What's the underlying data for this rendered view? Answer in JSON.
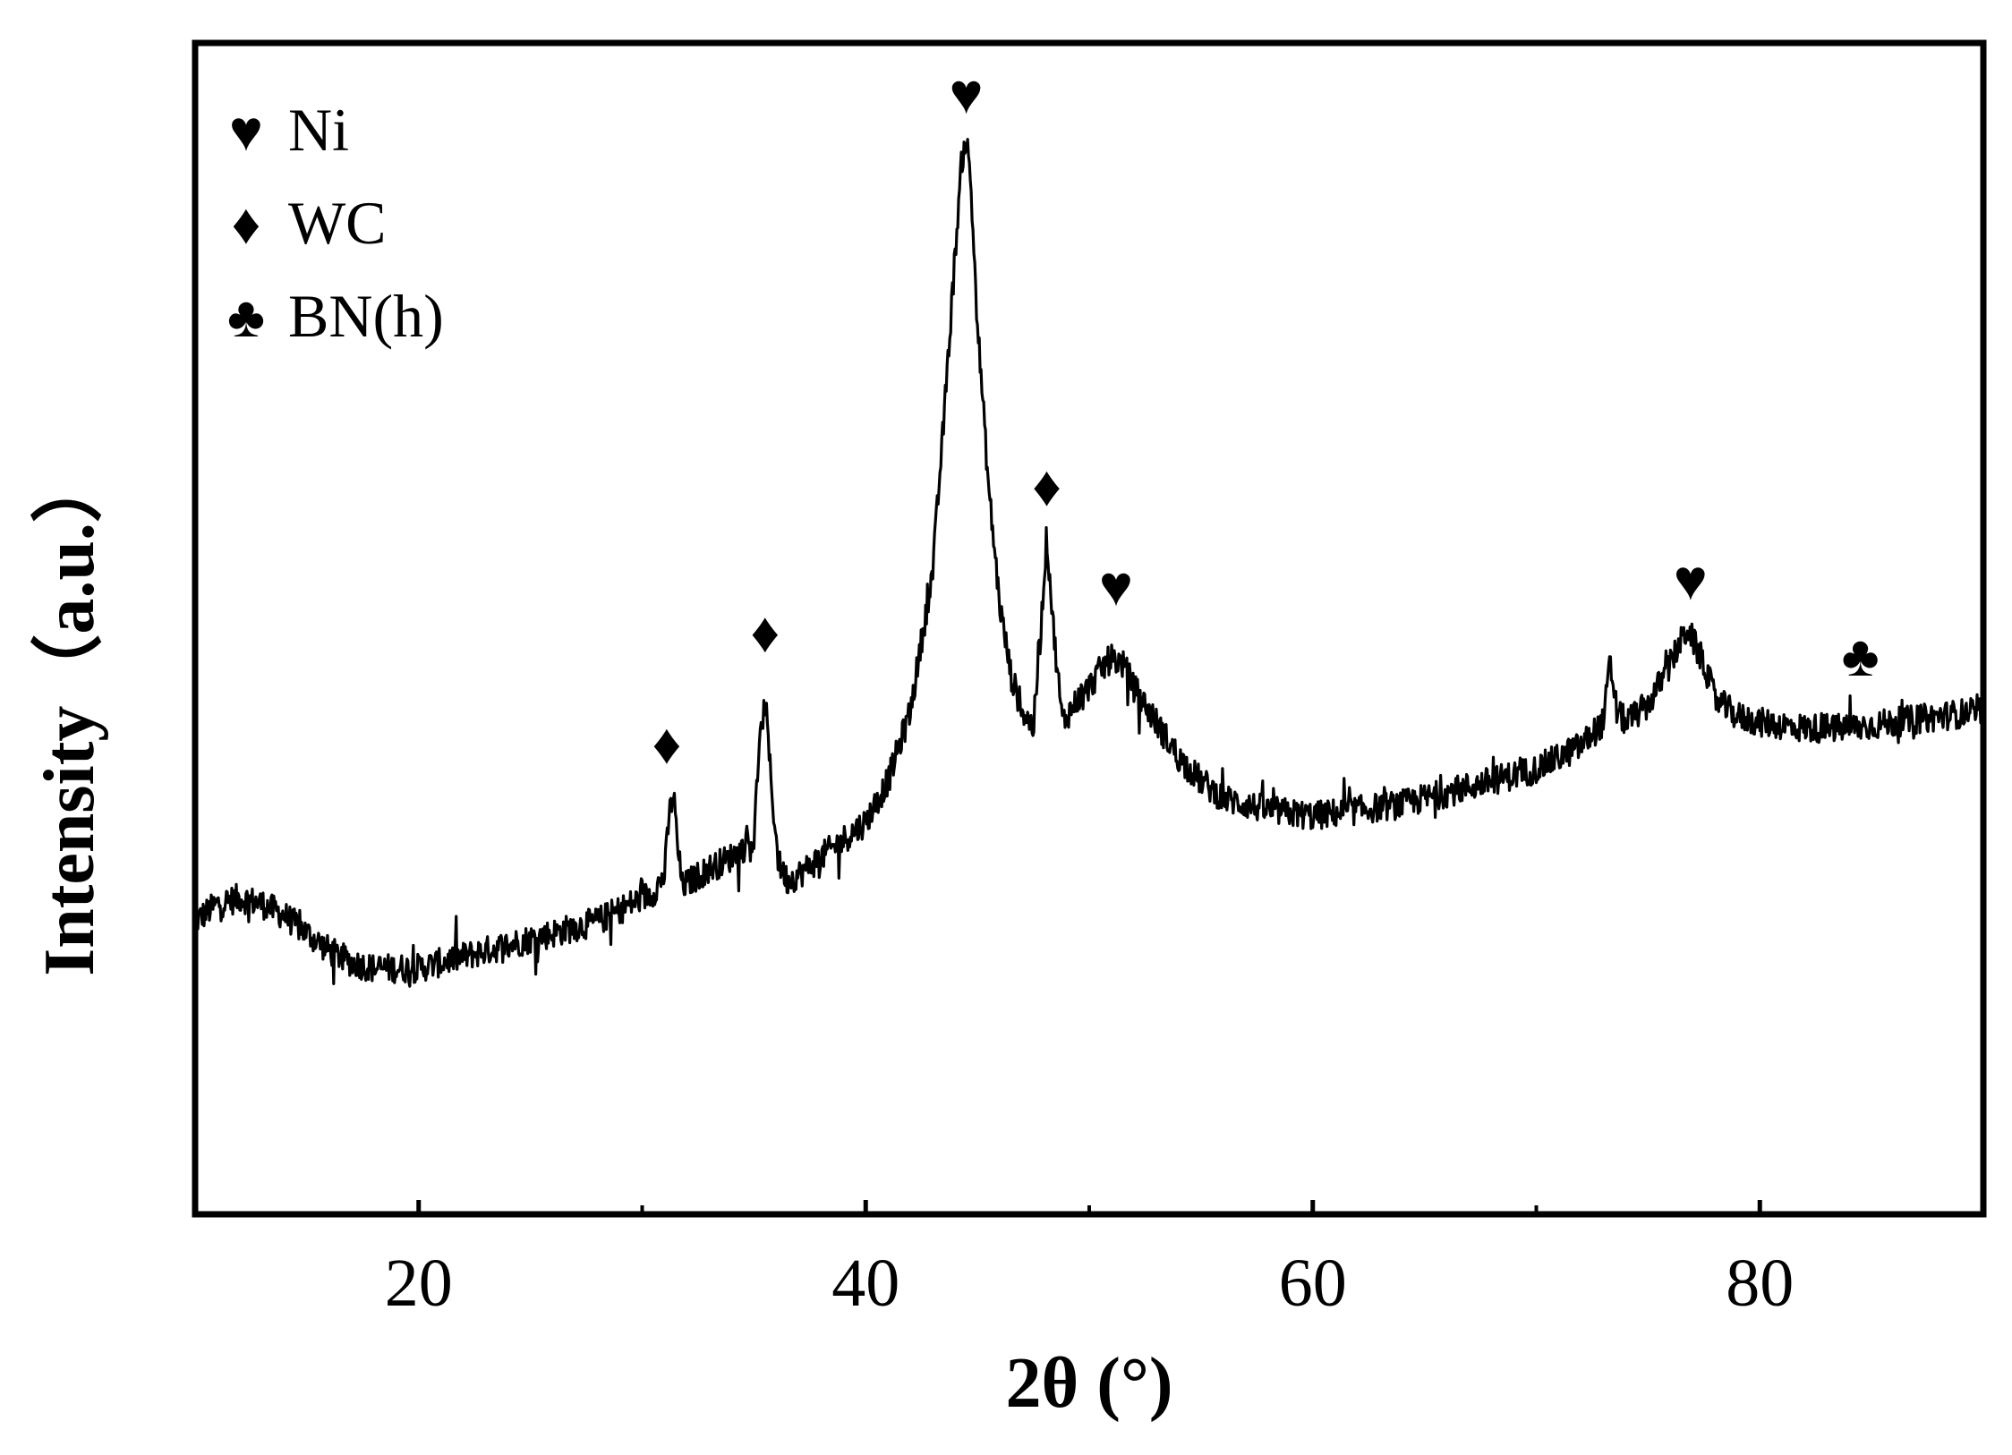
{
  "chart_data": {
    "type": "line",
    "xlabel": "2θ (°)",
    "ylabel": "Intensity（a.u.）",
    "xlim": [
      10,
      90
    ],
    "ylim": [
      0,
      100
    ],
    "x_ticks": [
      20,
      40,
      60,
      80
    ],
    "x_minor_ticks": [
      30,
      50,
      70
    ],
    "x_tick_labels": [
      "20",
      "40",
      "60",
      "80"
    ],
    "y_tick_labels_shown": false,
    "grid": false,
    "legend_position": "top-left",
    "legend": [
      {
        "symbol": "♥",
        "label": "Ni"
      },
      {
        "symbol": "♦",
        "label": "WC"
      },
      {
        "symbol": "♣",
        "label": "BN(h)"
      }
    ],
    "series": [
      {
        "color": "#000000",
        "noise_amplitude": 2.5,
        "x": [
          10,
          11,
          12,
          13,
          14,
          15,
          16,
          17,
          18,
          19,
          20,
          21,
          22,
          23,
          24,
          25,
          26,
          27,
          28,
          29,
          30,
          30.5,
          31,
          31.2,
          31.4,
          31.6,
          31.8,
          32.2,
          33,
          34,
          35,
          35.2,
          35.5,
          35.8,
          36.1,
          36.5,
          37,
          38,
          39,
          40,
          41,
          42,
          43,
          43.5,
          44,
          44.3,
          44.5,
          44.7,
          45,
          45.5,
          46,
          46.5,
          47,
          47.5,
          47.8,
          48.1,
          48.4,
          48.8,
          49.5,
          50,
          50.5,
          51,
          51.5,
          52,
          53,
          54,
          55,
          56,
          58,
          60,
          62,
          64,
          66,
          68,
          70,
          72,
          73,
          73.3,
          73.6,
          74,
          75,
          76,
          76.5,
          76.8,
          77,
          77.5,
          78,
          79,
          80,
          82,
          84,
          86,
          88,
          90
        ],
        "y": [
          25,
          26.5,
          27,
          26.5,
          25.5,
          24,
          22.5,
          21.5,
          21,
          21,
          21,
          21.5,
          22,
          22.5,
          23,
          23.5,
          24,
          24.5,
          25,
          26,
          27,
          27.5,
          29,
          34,
          36,
          31,
          28,
          28.5,
          29.5,
          30.5,
          32,
          39,
          44,
          36,
          30,
          28.5,
          29,
          30.5,
          32,
          33.5,
          37,
          43,
          55,
          68,
          82,
          90,
          92,
          88,
          76,
          62,
          52,
          46,
          43,
          41.5,
          49,
          58,
          50,
          42,
          44,
          45,
          46.5,
          47.5,
          47,
          45,
          42,
          39,
          37,
          35.5,
          34.5,
          34,
          34.5,
          35,
          36,
          37,
          38,
          40,
          42,
          47,
          43,
          42,
          43.5,
          47,
          49,
          50,
          49,
          47,
          44,
          42.5,
          42,
          41.5,
          41.5,
          42,
          42.5,
          43
        ]
      }
    ],
    "annotations": [
      {
        "symbol": "♦",
        "phase": "WC",
        "x": 31.1,
        "y": 38.5
      },
      {
        "symbol": "♦",
        "phase": "WC",
        "x": 35.5,
        "y": 48
      },
      {
        "symbol": "♥",
        "phase": "Ni",
        "x": 44.5,
        "y": 94
      },
      {
        "symbol": "♦",
        "phase": "WC",
        "x": 48.1,
        "y": 60.5
      },
      {
        "symbol": "♥",
        "phase": "Ni",
        "x": 51.2,
        "y": 52
      },
      {
        "symbol": "♥",
        "phase": "Ni",
        "x": 76.9,
        "y": 52.5
      },
      {
        "symbol": "♣",
        "phase": "BN(h)",
        "x": 84.5,
        "y": 46
      }
    ]
  }
}
